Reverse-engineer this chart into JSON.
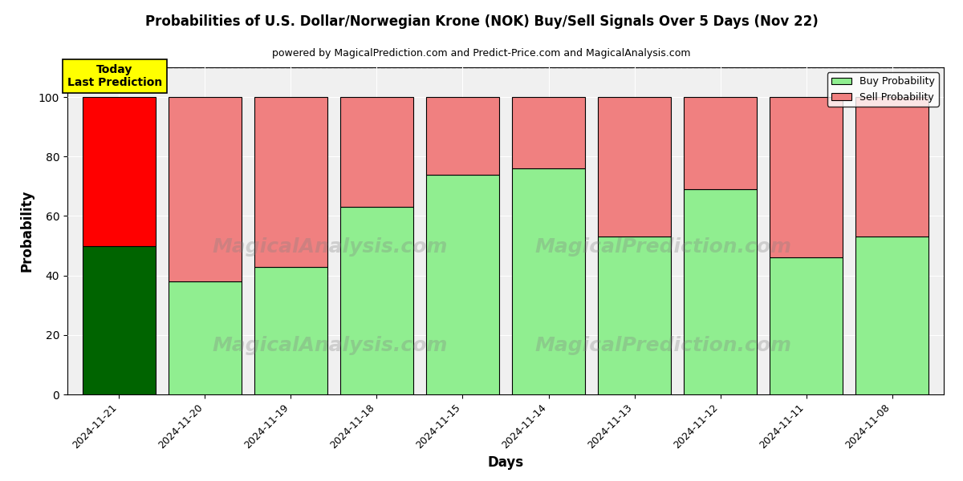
{
  "title": "Probabilities of U.S. Dollar/Norwegian Krone (NOK) Buy/Sell Signals Over 5 Days (Nov 22)",
  "subtitle": "powered by MagicalPrediction.com and Predict-Price.com and MagicalAnalysis.com",
  "xlabel": "Days",
  "ylabel": "Probability",
  "categories": [
    "2024-11-21",
    "2024-11-20",
    "2024-11-19",
    "2024-11-18",
    "2024-11-15",
    "2024-11-14",
    "2024-11-13",
    "2024-11-12",
    "2024-11-11",
    "2024-11-08"
  ],
  "buy_values": [
    50,
    38,
    43,
    63,
    74,
    76,
    53,
    69,
    46,
    53
  ],
  "sell_values": [
    50,
    62,
    57,
    37,
    26,
    24,
    47,
    31,
    54,
    47
  ],
  "today_buy_color": "#006400",
  "today_sell_color": "#FF0000",
  "buy_color": "#90EE90",
  "sell_color": "#F08080",
  "today_box_color": "#FFFF00",
  "today_box_text": "Today\nLast Prediction",
  "ylim": [
    0,
    110
  ],
  "yticks": [
    0,
    20,
    40,
    60,
    80,
    100
  ],
  "dashed_line_y": 110,
  "bar_width": 0.85,
  "background_color": "#ffffff",
  "plot_bg_color": "#f0f0f0",
  "grid_color": "#ffffff",
  "watermark1_text": "MagicalAnalysis.com",
  "watermark2_text": "MagicalPrediction.com",
  "legend_entries": [
    "Buy Probability",
    "Sell Probability"
  ],
  "legend_colors": [
    "#90EE90",
    "#F08080"
  ]
}
